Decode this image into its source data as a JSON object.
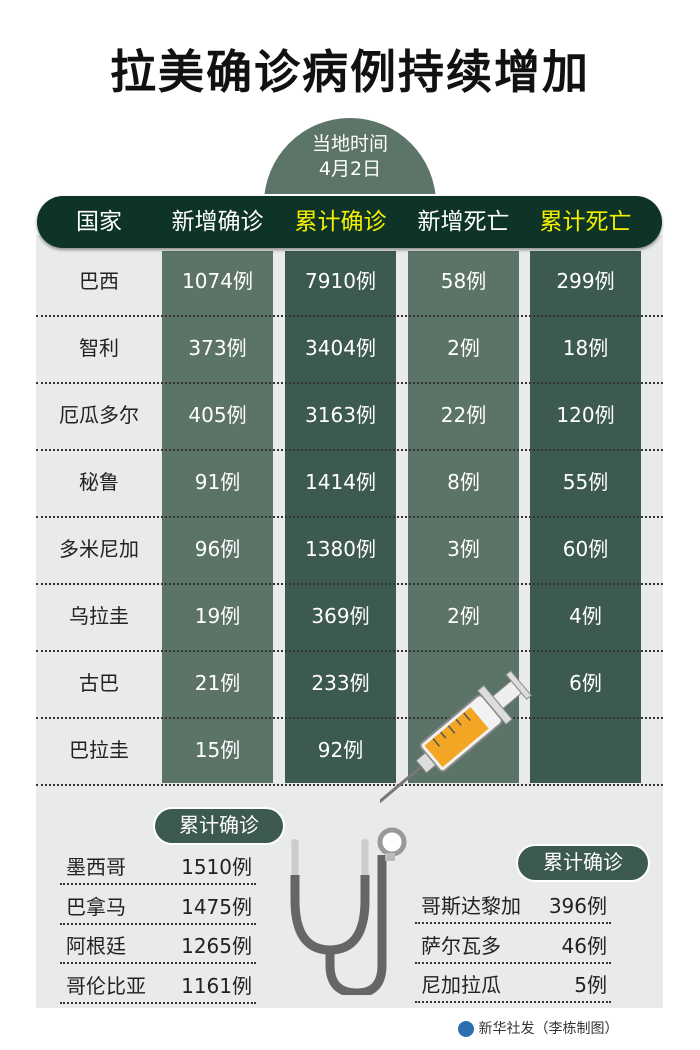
{
  "title": "拉美确诊病例持续增加",
  "date_badge": {
    "line1": "当地时间",
    "line2": "4月2日"
  },
  "chart_data": {
    "type": "table",
    "columns": [
      "国家",
      "新增确诊",
      "累计确诊",
      "新增死亡",
      "累计死亡"
    ],
    "rows": [
      [
        "巴西",
        "1074例",
        "7910例",
        "58例",
        "299例"
      ],
      [
        "智利",
        "373例",
        "3404例",
        "2例",
        "18例"
      ],
      [
        "厄瓜多尔",
        "405例",
        "3163例",
        "22例",
        "120例"
      ],
      [
        "秘鲁",
        "91例",
        "1414例",
        "8例",
        "55例"
      ],
      [
        "多米尼加",
        "96例",
        "1380例",
        "3例",
        "60例"
      ],
      [
        "乌拉圭",
        "19例",
        "369例",
        "2例",
        "4例"
      ],
      [
        "古巴",
        "21例",
        "233例",
        "",
        "6例"
      ],
      [
        "巴拉圭",
        "15例",
        "92例",
        "",
        ""
      ]
    ],
    "highlight_color": "#f5f000"
  },
  "left_list": {
    "label": "累计确诊",
    "items": [
      {
        "country": "墨西哥",
        "value": "1510例"
      },
      {
        "country": "巴拿马",
        "value": "1475例"
      },
      {
        "country": "阿根廷",
        "value": "1265例"
      },
      {
        "country": "哥伦比亚",
        "value": "1161例"
      }
    ]
  },
  "right_list": {
    "label": "累计确诊",
    "items": [
      {
        "country": "哥斯达黎加",
        "value": "396例"
      },
      {
        "country": "萨尔瓦多",
        "value": "46例"
      },
      {
        "country": "尼加拉瓜",
        "value": "5例"
      }
    ]
  },
  "footer": "新华社发（李栋制图）",
  "colors": {
    "header": "#0e3327",
    "column_light": "#5c7468",
    "column_dark": "#3d5a4f",
    "panel": "#e9ebea"
  }
}
